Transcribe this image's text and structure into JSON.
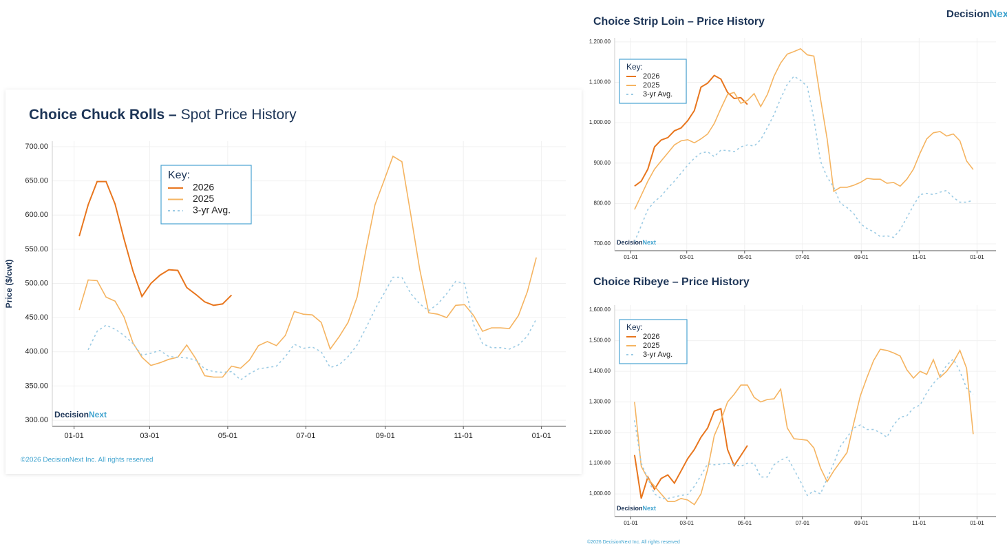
{
  "logo": [
    "Decision",
    "Next"
  ],
  "footer": "©2026 DecisionNext Inc. All rights reserved",
  "chart_data": [
    {
      "type": "line",
      "title": "Choice Chuck Rolls –",
      "subtitle": "Spot Price History",
      "ylabel": "Price ($/cwt)",
      "legend_title": "Key:",
      "watermark": [
        "Decision",
        "Next"
      ],
      "copyright": "©2026 DecisionNext Inc. All rights reserved",
      "grid": true,
      "legend": "upper left",
      "x": [
        4,
        11,
        18,
        25,
        32,
        39,
        46,
        53,
        60,
        67,
        74,
        81,
        88,
        95,
        102,
        109,
        116,
        123,
        130,
        137,
        144,
        151,
        158,
        165,
        172,
        179,
        186,
        193,
        200,
        207,
        214,
        221,
        228,
        235,
        242,
        249,
        256,
        263,
        270,
        277,
        284,
        291,
        298,
        305,
        312,
        319,
        326,
        333,
        340,
        347,
        354,
        361
      ],
      "xlim": [
        -17,
        384
      ],
      "xticks": [
        {
          "value": 0,
          "label": "01-01"
        },
        {
          "value": 59,
          "label": "03-01"
        },
        {
          "value": 120,
          "label": "05-01"
        },
        {
          "value": 181,
          "label": "07-01"
        },
        {
          "value": 243,
          "label": "09-01"
        },
        {
          "value": 304,
          "label": "11-01"
        },
        {
          "value": 365,
          "label": "01-01"
        }
      ],
      "ylim": [
        291,
        708
      ],
      "yticks": [
        {
          "value": 300,
          "label": "300.00"
        },
        {
          "value": 350,
          "label": "350.00"
        },
        {
          "value": 400,
          "label": "400.00"
        },
        {
          "value": 450,
          "label": "450.00"
        },
        {
          "value": 500,
          "label": "500.00"
        },
        {
          "value": 550,
          "label": "550.00"
        },
        {
          "value": 600,
          "label": "600.00"
        },
        {
          "value": 650,
          "label": "650.00"
        },
        {
          "value": 700,
          "label": "700.00"
        }
      ],
      "series": [
        {
          "name": "2026",
          "color": "#e8761e",
          "values": [
            569,
            615,
            649,
            649,
            616,
            565,
            518,
            481,
            500,
            512,
            520,
            519,
            494,
            484,
            473,
            468,
            470,
            483,
            null,
            null,
            null,
            null,
            null,
            null,
            null,
            null,
            null,
            null,
            null,
            null,
            null,
            null,
            null,
            null,
            null,
            null,
            null,
            null,
            null,
            null,
            null,
            null,
            null,
            null,
            null,
            null,
            null,
            null,
            null,
            null,
            null,
            null
          ]
        },
        {
          "name": "2025",
          "color": "#f5b461",
          "values": [
            461,
            505,
            504,
            480,
            474,
            451,
            413,
            392,
            380,
            384,
            389,
            392,
            410,
            390,
            365,
            363,
            363,
            379,
            376,
            388,
            409,
            415,
            409,
            424,
            459,
            455,
            454,
            443,
            404,
            422,
            443,
            480,
            550,
            615,
            650,
            686,
            678,
            600,
            520,
            457,
            455,
            450,
            468,
            469,
            453,
            430,
            435,
            435,
            434,
            453,
            488,
            538
          ]
        },
        {
          "name": "3-yr Avg.",
          "color": "#9ccbe4",
          "dashed": true,
          "values": [
            null,
            403,
            430,
            439,
            433,
            424,
            412,
            395,
            398,
            402,
            393,
            392,
            391,
            388,
            375,
            371,
            370,
            371,
            359,
            368,
            375,
            377,
            379,
            393,
            411,
            405,
            407,
            400,
            377,
            381,
            393,
            410,
            435,
            462,
            485,
            509,
            509,
            485,
            470,
            460,
            470,
            485,
            503,
            500,
            440,
            412,
            406,
            406,
            404,
            410,
            423,
            448
          ]
        }
      ]
    },
    {
      "type": "line",
      "title": "Choice Strip Loin – Price History",
      "legend_title": "Key:",
      "watermark": [
        "Decision",
        "Next"
      ],
      "grid": true,
      "legend": "upper left",
      "x": [
        4,
        11,
        18,
        25,
        32,
        39,
        46,
        53,
        60,
        67,
        74,
        81,
        88,
        95,
        102,
        109,
        116,
        123,
        130,
        137,
        144,
        151,
        158,
        165,
        172,
        179,
        186,
        193,
        200,
        207,
        214,
        221,
        228,
        235,
        242,
        249,
        256,
        263,
        270,
        277,
        284,
        291,
        298,
        305,
        312,
        319,
        326,
        333,
        340,
        347,
        354,
        361
      ],
      "xlim": [
        -17,
        385
      ],
      "xticks": [
        {
          "value": 0,
          "label": "01-01"
        },
        {
          "value": 59,
          "label": "03-01"
        },
        {
          "value": 120,
          "label": "05-01"
        },
        {
          "value": 181,
          "label": "07-01"
        },
        {
          "value": 243,
          "label": "09-01"
        },
        {
          "value": 304,
          "label": "11-01"
        },
        {
          "value": 365,
          "label": "01-01"
        }
      ],
      "ylim": [
        683,
        1210
      ],
      "yticks": [
        {
          "value": 700,
          "label": "700.00"
        },
        {
          "value": 800,
          "label": "800.00"
        },
        {
          "value": 900,
          "label": "900.00"
        },
        {
          "value": 1000,
          "label": "1,000.00"
        },
        {
          "value": 1100,
          "label": "1,100.00"
        },
        {
          "value": 1200,
          "label": "1,200.00"
        }
      ],
      "series": [
        {
          "name": "2026",
          "color": "#e8761e",
          "values": [
            843,
            855,
            885,
            940,
            957,
            963,
            980,
            987,
            1005,
            1030,
            1088,
            1098,
            1117,
            1108,
            1075,
            1060,
            1062,
            1045,
            null,
            null,
            null,
            null,
            null,
            null,
            null,
            null,
            null,
            null,
            null,
            null,
            null,
            null,
            null,
            null,
            null,
            null,
            null,
            null,
            null,
            null,
            null,
            null,
            null,
            null,
            null,
            null,
            null,
            null,
            null,
            null,
            null,
            null
          ]
        },
        {
          "name": "2025",
          "color": "#f5b461",
          "values": [
            785,
            820,
            855,
            885,
            905,
            925,
            945,
            955,
            958,
            950,
            960,
            972,
            998,
            1035,
            1070,
            1075,
            1048,
            1055,
            1072,
            1040,
            1070,
            1115,
            1148,
            1170,
            1176,
            1183,
            1168,
            1165,
            1060,
            960,
            830,
            840,
            840,
            845,
            852,
            862,
            860,
            860,
            850,
            852,
            843,
            860,
            885,
            925,
            960,
            975,
            978,
            967,
            972,
            955,
            905,
            884
          ]
        },
        {
          "name": "3-yr Avg.",
          "color": "#9ccbe4",
          "dashed": true,
          "values": [
            705,
            745,
            785,
            805,
            818,
            838,
            855,
            875,
            895,
            912,
            925,
            928,
            916,
            932,
            931,
            928,
            940,
            945,
            942,
            958,
            988,
            1020,
            1060,
            1095,
            1115,
            1105,
            1090,
            1010,
            905,
            865,
            840,
            800,
            790,
            775,
            750,
            738,
            730,
            718,
            720,
            716,
            735,
            765,
            795,
            822,
            825,
            822,
            828,
            832,
            815,
            803,
            803,
            808
          ]
        }
      ]
    },
    {
      "type": "line",
      "title": "Choice Ribeye – Price History",
      "legend_title": "Key:",
      "watermark": [
        "Decision",
        "Next"
      ],
      "grid": true,
      "legend": "upper left",
      "x": [
        4,
        11,
        18,
        25,
        32,
        39,
        46,
        53,
        60,
        67,
        74,
        81,
        88,
        95,
        102,
        109,
        116,
        123,
        130,
        137,
        144,
        151,
        158,
        165,
        172,
        179,
        186,
        193,
        200,
        207,
        214,
        221,
        228,
        235,
        242,
        249,
        256,
        263,
        270,
        277,
        284,
        291,
        298,
        305,
        312,
        319,
        326,
        333,
        340,
        347,
        354,
        361
      ],
      "xlim": [
        -17,
        385
      ],
      "xticks": [
        {
          "value": 0,
          "label": "01-01"
        },
        {
          "value": 59,
          "label": "03-01"
        },
        {
          "value": 120,
          "label": "05-01"
        },
        {
          "value": 181,
          "label": "07-01"
        },
        {
          "value": 243,
          "label": "09-01"
        },
        {
          "value": 304,
          "label": "11-01"
        },
        {
          "value": 365,
          "label": "01-01"
        }
      ],
      "ylim": [
        926,
        1616
      ],
      "yticks": [
        {
          "value": 1000,
          "label": "1,000.00"
        },
        {
          "value": 1100,
          "label": "1,100.00"
        },
        {
          "value": 1200,
          "label": "1,200.00"
        },
        {
          "value": 1300,
          "label": "1,300.00"
        },
        {
          "value": 1400,
          "label": "1,400.00"
        },
        {
          "value": 1500,
          "label": "1,500.00"
        },
        {
          "value": 1600,
          "label": "1,600.00"
        }
      ],
      "series": [
        {
          "name": "2026",
          "color": "#e8761e",
          "values": [
            1127,
            985,
            1055,
            1015,
            1050,
            1062,
            1035,
            1075,
            1115,
            1145,
            1185,
            1215,
            1270,
            1278,
            1145,
            1092,
            1125,
            1158,
            null,
            null,
            null,
            null,
            null,
            null,
            null,
            null,
            null,
            null,
            null,
            null,
            null,
            null,
            null,
            null,
            null,
            null,
            null,
            null,
            null,
            null,
            null,
            null,
            null,
            null,
            null,
            null,
            null,
            null,
            null,
            null,
            null,
            null
          ]
        },
        {
          "name": "2025",
          "color": "#f5b461",
          "values": [
            1300,
            1090,
            1050,
            1025,
            1000,
            975,
            975,
            985,
            980,
            965,
            1000,
            1080,
            1190,
            1240,
            1300,
            1325,
            1355,
            1355,
            1315,
            1300,
            1308,
            1310,
            1342,
            1215,
            1180,
            1178,
            1175,
            1150,
            1085,
            1040,
            1075,
            1105,
            1135,
            1230,
            1320,
            1380,
            1435,
            1472,
            1468,
            1460,
            1450,
            1405,
            1378,
            1400,
            1390,
            1438,
            1380,
            1400,
            1430,
            1468,
            1410,
            1195
          ]
        },
        {
          "name": "3-yr Avg.",
          "color": "#9ccbe4",
          "dashed": true,
          "values": [
            1240,
            1100,
            1050,
            1000,
            985,
            985,
            990,
            995,
            998,
            1025,
            1060,
            1098,
            1095,
            1097,
            1100,
            1095,
            1090,
            1100,
            1100,
            1055,
            1055,
            1095,
            1110,
            1120,
            1080,
            1040,
            995,
            1010,
            1000,
            1050,
            1100,
            1155,
            1185,
            1215,
            1225,
            1210,
            1210,
            1200,
            1185,
            1225,
            1250,
            1255,
            1280,
            1290,
            1330,
            1360,
            1385,
            1420,
            1440,
            1400,
            1345,
            1325
          ]
        }
      ]
    }
  ]
}
